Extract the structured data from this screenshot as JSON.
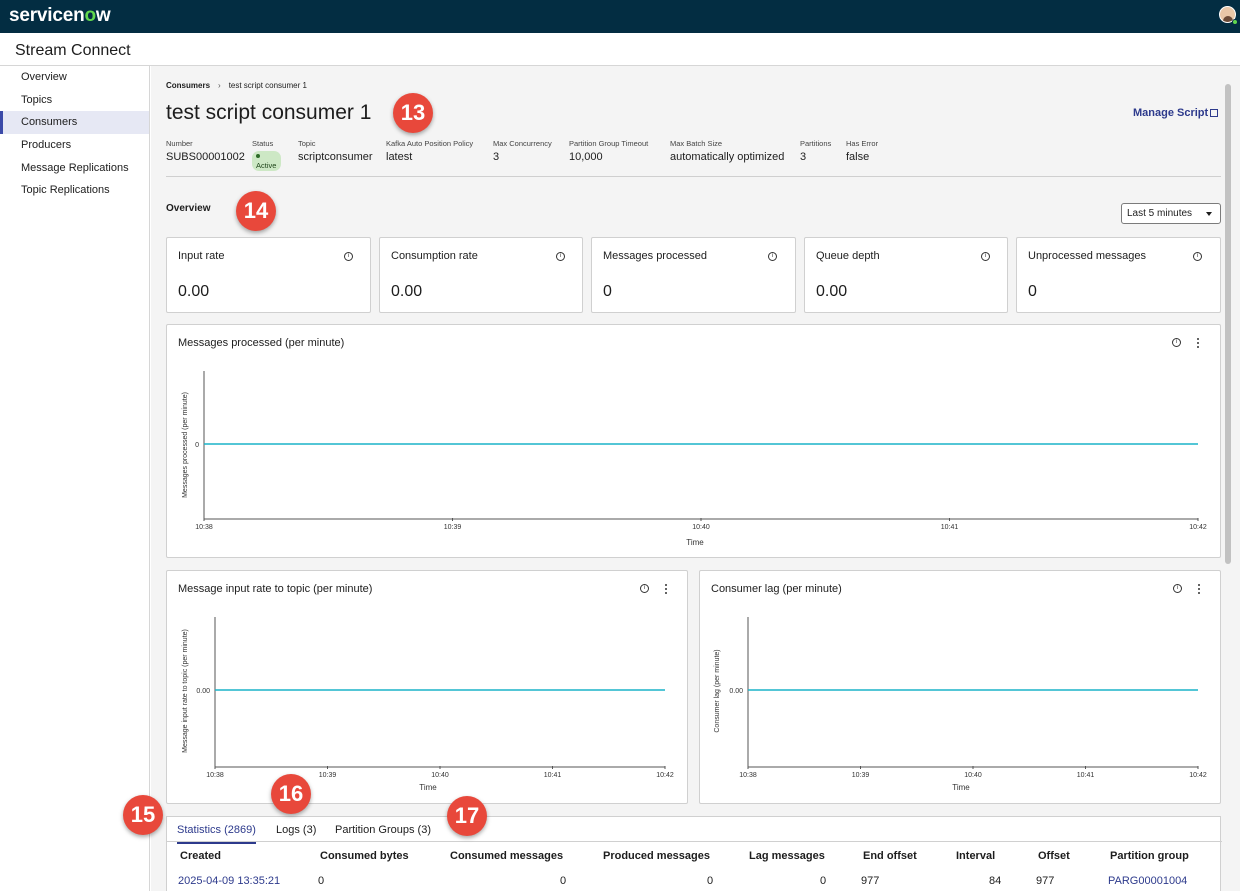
{
  "brand": {
    "name_pre": "servicen",
    "name_o": "o",
    "name_post": "w"
  },
  "app": {
    "title": "Stream Connect"
  },
  "sidebar": {
    "items": [
      {
        "label": "Overview"
      },
      {
        "label": "Topics"
      },
      {
        "label": "Consumers",
        "active": true
      },
      {
        "label": "Producers"
      },
      {
        "label": "Message Replications"
      },
      {
        "label": "Topic Replications"
      }
    ]
  },
  "breadcrumb": {
    "parent": "Consumers",
    "current": "test script consumer 1"
  },
  "record": {
    "title": "test script consumer 1",
    "manage_label": "Manage Script",
    "fields": [
      {
        "label": "Number",
        "value": "SUBS00001002"
      },
      {
        "label": "Status",
        "value": "Active"
      },
      {
        "label": "Topic",
        "value": "scriptconsumer"
      },
      {
        "label": "Kafka Auto Position Policy",
        "value": "latest"
      },
      {
        "label": "Max Concurrency",
        "value": "3"
      },
      {
        "label": "Partition Group Timeout",
        "value": "10,000"
      },
      {
        "label": "Max Batch Size",
        "value": "automatically optimized"
      },
      {
        "label": "Partitions",
        "value": "3"
      },
      {
        "label": "Has Error",
        "value": "false"
      }
    ]
  },
  "overview": {
    "title": "Overview",
    "time_range": "Last 5 minutes",
    "kpis": [
      {
        "label": "Input rate",
        "value": "0.00"
      },
      {
        "label": "Consumption rate",
        "value": "0.00"
      },
      {
        "label": "Messages processed",
        "value": "0"
      },
      {
        "label": "Queue depth",
        "value": "0.00"
      },
      {
        "label": "Unprocessed messages",
        "value": "0"
      }
    ]
  },
  "charts": [
    {
      "title": "Messages processed (per minute)",
      "ylabel": "Messages processed (per minute)",
      "xlabel": "Time",
      "ytick": "0",
      "xticks": [
        "10:38",
        "10:39",
        "10:40",
        "10:41",
        "10:42"
      ]
    },
    {
      "title": "Message input rate to topic (per minute)",
      "ylabel": "Message input rate to topic (per minute)",
      "xlabel": "Time",
      "ytick": "0.00",
      "xticks": [
        "10:38",
        "10:39",
        "10:40",
        "10:41",
        "10:42"
      ]
    },
    {
      "title": "Consumer lag (per minute)",
      "ylabel": "Consumer lag (per minute)",
      "xlabel": "Time",
      "ytick": "0.00",
      "xticks": [
        "10:38",
        "10:39",
        "10:40",
        "10:41",
        "10:42"
      ]
    }
  ],
  "chart_data": [
    {
      "type": "line",
      "title": "Messages processed (per minute)",
      "xlabel": "Time",
      "ylabel": "Messages processed (per minute)",
      "x": [
        "10:38",
        "10:39",
        "10:40",
        "10:41",
        "10:42"
      ],
      "series": [
        {
          "values": [
            0,
            0,
            0,
            0,
            0
          ]
        }
      ]
    },
    {
      "type": "line",
      "title": "Message input rate to topic (per minute)",
      "xlabel": "Time",
      "ylabel": "Message input rate to topic (per minute)",
      "x": [
        "10:38",
        "10:39",
        "10:40",
        "10:41",
        "10:42"
      ],
      "series": [
        {
          "values": [
            0,
            0,
            0,
            0,
            0
          ]
        }
      ]
    },
    {
      "type": "line",
      "title": "Consumer lag (per minute)",
      "xlabel": "Time",
      "ylabel": "Consumer lag (per minute)",
      "x": [
        "10:38",
        "10:39",
        "10:40",
        "10:41",
        "10:42"
      ],
      "series": [
        {
          "values": [
            0,
            0,
            0,
            0,
            0
          ]
        }
      ]
    }
  ],
  "tabs": [
    {
      "label": "Statistics (2869)",
      "active": true
    },
    {
      "label": "Logs (3)"
    },
    {
      "label": "Partition Groups (3)"
    }
  ],
  "table": {
    "headers": [
      "Created",
      "Consumed bytes",
      "Consumed messages",
      "Produced messages",
      "Lag messages",
      "End offset",
      "Interval",
      "Offset",
      "Partition group"
    ],
    "rows": [
      [
        "2025-04-09 13:35:21",
        "0",
        "0",
        "0",
        "0",
        "977",
        "84",
        "977",
        "PARG00001004"
      ]
    ]
  },
  "callouts": [
    "13",
    "14",
    "15",
    "16",
    "17"
  ],
  "colors": {
    "topbar": "#032d42",
    "accent": "#2d3a8c",
    "line": "#1ab3c9",
    "callout": "#e8483b"
  }
}
